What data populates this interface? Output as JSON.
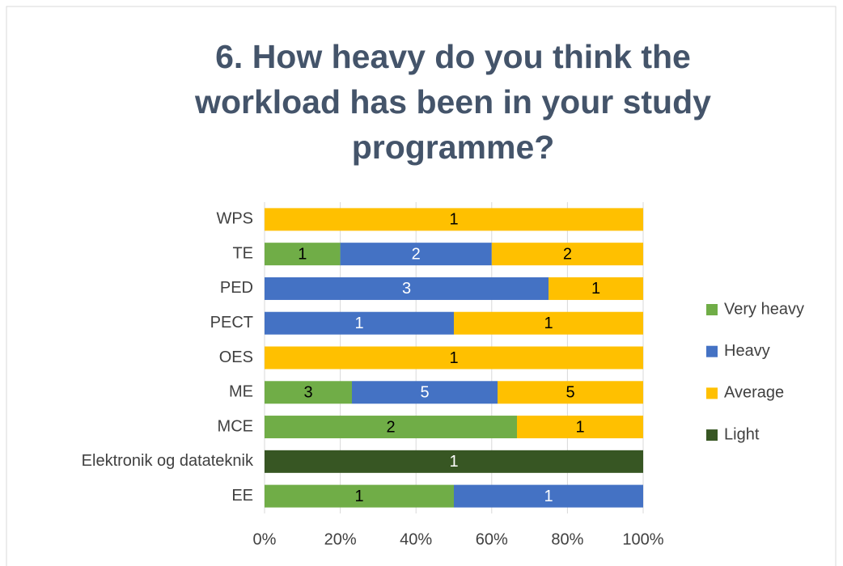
{
  "chart_data": {
    "type": "percent_stacked_bar",
    "orientation": "horizontal",
    "title": "6. How heavy do you think the workload has been in your study programme?",
    "categories": [
      "WPS",
      "TE",
      "PED",
      "PECT",
      "OES",
      "ME",
      "MCE",
      "Elektronik og datateknik",
      "EE"
    ],
    "series": [
      {
        "name": "Very heavy",
        "color": "#70ad47",
        "label_color": "#000000",
        "values": [
          null,
          1,
          null,
          null,
          null,
          3,
          2,
          null,
          1
        ]
      },
      {
        "name": "Heavy",
        "color": "#4472c4",
        "label_color": "#ffffff",
        "values": [
          null,
          2,
          3,
          1,
          null,
          5,
          null,
          null,
          1
        ]
      },
      {
        "name": "Average",
        "color": "#ffc000",
        "label_color": "#000000",
        "values": [
          1,
          2,
          1,
          1,
          1,
          5,
          1,
          null,
          null
        ]
      },
      {
        "name": "Light",
        "color": "#375623",
        "label_color": "#ffffff",
        "values": [
          null,
          null,
          null,
          null,
          null,
          null,
          null,
          1,
          null
        ]
      }
    ],
    "xlim": [
      0,
      100
    ],
    "xticks": [
      {
        "value": 0,
        "label": "0%"
      },
      {
        "value": 20,
        "label": "20%"
      },
      {
        "value": 40,
        "label": "40%"
      },
      {
        "value": 60,
        "label": "60%"
      },
      {
        "value": 80,
        "label": "80%"
      },
      {
        "value": 100,
        "label": "100%"
      }
    ],
    "grid": true,
    "legend": "right"
  }
}
